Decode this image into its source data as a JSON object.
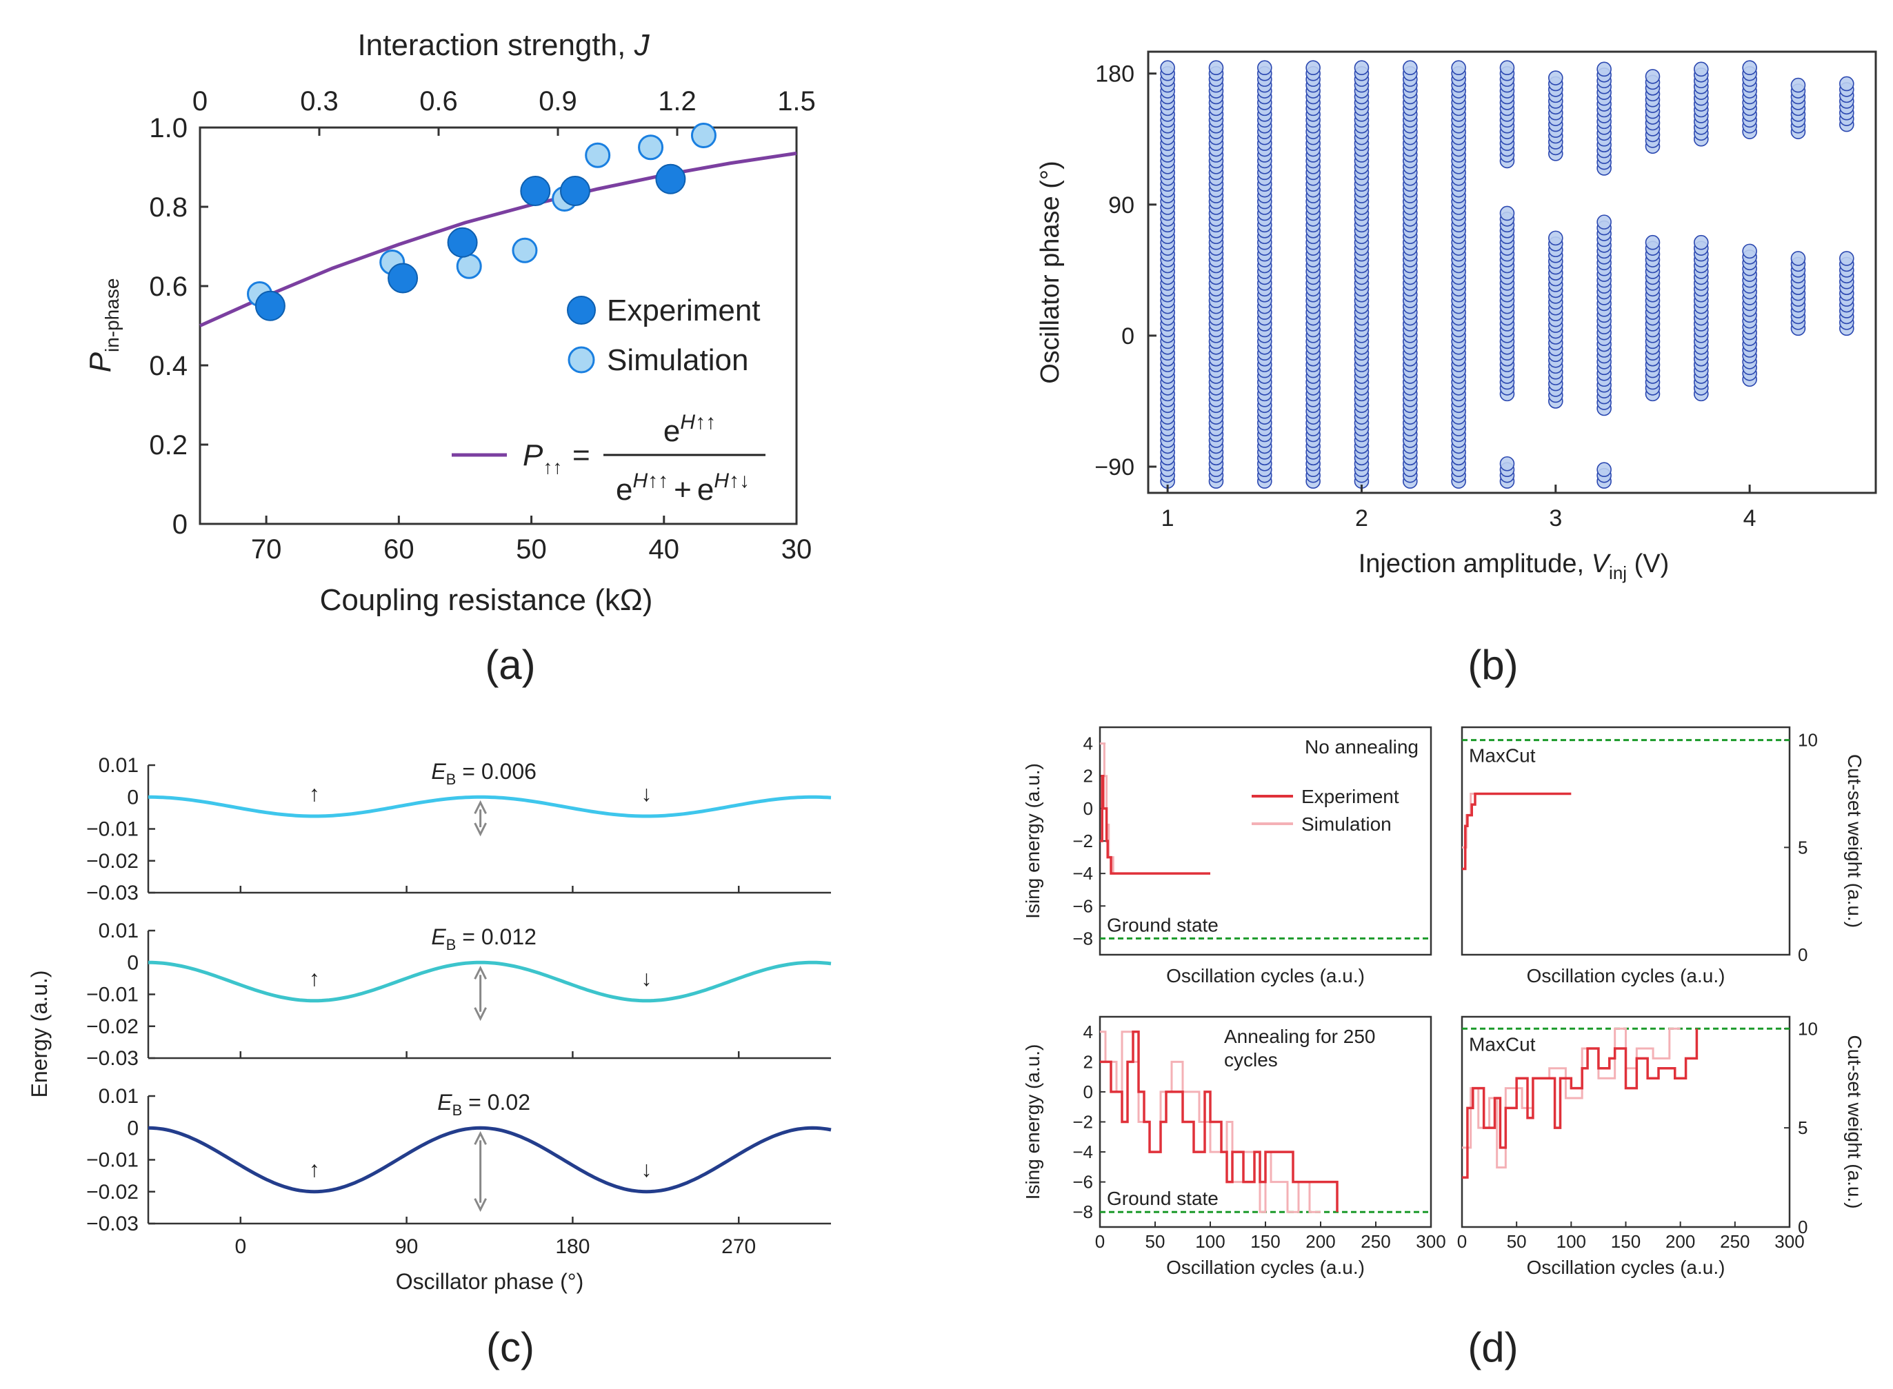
{
  "chart_data": [
    {
      "panel": "(a)",
      "type": "scatter",
      "top_axis_label_text": "Interaction strength, ",
      "top_axis_label_var": "J",
      "top_ticks": [
        "0",
        "0.3",
        "0.6",
        "0.9",
        "1.2",
        "1.5"
      ],
      "xlabel": "Coupling resistance (kΩ)",
      "x_ticks": [
        "70",
        "60",
        "50",
        "40",
        "30"
      ],
      "xlim": [
        75,
        30
      ],
      "ylabel_main": "P",
      "ylabel_sub": "in-phase",
      "y_ticks": [
        "0",
        "0.2",
        "0.4",
        "0.6",
        "0.8",
        "1.0"
      ],
      "ylim": [
        0,
        1.0
      ],
      "series": [
        {
          "name": "Experiment",
          "color": "#1a7fe0",
          "x": [
            69.7,
            59.7,
            55.2,
            49.7,
            46.7,
            39.5
          ],
          "y": [
            0.55,
            0.62,
            0.71,
            0.84,
            0.84,
            0.87
          ]
        },
        {
          "name": "Simulation",
          "color": "#a9d7f4",
          "x": [
            70.5,
            60.5,
            54.7,
            50.5,
            47.5,
            45.0,
            41.0,
            37.0
          ],
          "y": [
            0.58,
            0.66,
            0.65,
            0.69,
            0.82,
            0.93,
            0.95,
            0.98
          ]
        }
      ],
      "fit": {
        "color": "#7b3fa0",
        "x": [
          75,
          70,
          65,
          60,
          55,
          50,
          45,
          40,
          35,
          30
        ],
        "y": [
          0.5,
          0.575,
          0.645,
          0.705,
          0.76,
          0.805,
          0.845,
          0.88,
          0.91,
          0.935
        ]
      },
      "legend": {
        "experiment": "Experiment",
        "simulation": "Simulation"
      },
      "formula": {
        "lhs": "P",
        "lhs_sub": "↑↑",
        "eq": "=",
        "num": "e",
        "num_sup": "H↑↑",
        "den_a": "e",
        "den_a_sup": "H↑↑",
        "den_plus": "+",
        "den_b": "e",
        "den_b_sup": "H↑↓"
      },
      "tag": "(a)"
    },
    {
      "panel": "(b)",
      "type": "scatter",
      "xlabel_text": "Injection amplitude, ",
      "xlabel_var": "V",
      "xlabel_sub": "inj",
      "xlabel_unit": " (V)",
      "ylabel": "Oscillator phase (°)",
      "x_ticks": [
        "1",
        "2",
        "3",
        "4"
      ],
      "xlim": [
        0.9,
        4.65
      ],
      "y_ticks": [
        "−90",
        "0",
        "90",
        "180"
      ],
      "ylim": [
        -108,
        195
      ],
      "marker_color": "#b9cdf0",
      "marker_edge": "#2a47b0",
      "columns": [
        {
          "v": 1.0,
          "ranges": [
            [
              -100,
              185
            ]
          ]
        },
        {
          "v": 1.25,
          "ranges": [
            [
              -100,
              185
            ]
          ]
        },
        {
          "v": 1.5,
          "ranges": [
            [
              -100,
              185
            ]
          ]
        },
        {
          "v": 1.75,
          "ranges": [
            [
              -100,
              185
            ]
          ]
        },
        {
          "v": 2.0,
          "ranges": [
            [
              -100,
              185
            ]
          ]
        },
        {
          "v": 2.25,
          "ranges": [
            [
              -100,
              185
            ]
          ]
        },
        {
          "v": 2.5,
          "ranges": [
            [
              -100,
              185
            ]
          ]
        },
        {
          "v": 2.75,
          "ranges": [
            [
              120,
              185
            ],
            [
              -40,
              85
            ],
            [
              -100,
              -88
            ]
          ]
        },
        {
          "v": 3.0,
          "ranges": [
            [
              125,
              180
            ],
            [
              -45,
              70
            ]
          ]
        },
        {
          "v": 3.25,
          "ranges": [
            [
              115,
              185
            ],
            [
              -50,
              80
            ],
            [
              -100,
              -92
            ]
          ]
        },
        {
          "v": 3.5,
          "ranges": [
            [
              130,
              180
            ],
            [
              -40,
              65
            ]
          ]
        },
        {
          "v": 3.75,
          "ranges": [
            [
              135,
              185
            ],
            [
              -40,
              65
            ]
          ]
        },
        {
          "v": 4.0,
          "ranges": [
            [
              140,
              185
            ],
            [
              -30,
              60
            ]
          ]
        },
        {
          "v": 4.25,
          "ranges": [
            [
              140,
              172
            ],
            [
              5,
              55
            ]
          ]
        },
        {
          "v": 4.5,
          "ranges": [
            [
              145,
              175
            ],
            [
              5,
              55
            ]
          ]
        }
      ],
      "tag": "(b)"
    },
    {
      "panel": "(c)",
      "type": "line",
      "xlabel": "Oscillator phase (°)",
      "ylabel": "Energy (a.u.)",
      "x_ticks": [
        "0",
        "90",
        "180",
        "270"
      ],
      "xlim": [
        -50,
        320
      ],
      "y_ticks": [
        "0.01",
        "0",
        "−0.01",
        "−0.02",
        "−0.03"
      ],
      "ylim": [
        -0.03,
        0.01
      ],
      "series": [
        {
          "name": "E_B = 0.006",
          "label_var": "E",
          "label_sub": "B",
          "label_val": " = 0.006",
          "barrier": 0.006,
          "color": "#3ec6ec"
        },
        {
          "name": "E_B = 0.012",
          "label_var": "E",
          "label_sub": "B",
          "label_val": " = 0.012",
          "barrier": 0.012,
          "color": "#3cc4cc"
        },
        {
          "name": "E_B = 0.02",
          "label_var": "E",
          "label_sub": "B",
          "label_val": " = 0.02",
          "barrier": 0.02,
          "color": "#233d8c"
        }
      ],
      "minima_deg": [
        40,
        220
      ],
      "maximum_deg": 130,
      "spin_up": "↑",
      "spin_down": "↓",
      "tag": "(c)"
    },
    {
      "panel": "(d)",
      "type": "line",
      "xlabel": "Oscillation cycles (a.u.)",
      "x_ticks": [
        "0",
        "50",
        "100",
        "150",
        "200",
        "250",
        "300"
      ],
      "xlim": [
        0,
        300
      ],
      "left_ylabel": "Ising energy (a.u.)",
      "left_ticks": [
        "4",
        "2",
        "0",
        "−2",
        "−4",
        "−6",
        "−8"
      ],
      "left_ylim": [
        -9,
        5
      ],
      "right_ylabel": "Cut-set weight (a.u.)",
      "right_ticks": [
        "10",
        "5",
        "0"
      ],
      "right_ylim": [
        0,
        10.6
      ],
      "ground_state_label": "Ground state",
      "maxcut_label": "MaxCut",
      "no_annealing_label": "No annealing",
      "annealing_label_1": "Annealing for 250",
      "annealing_label_2": "cycles",
      "legend": {
        "experiment": "Experiment",
        "simulation": "Simulation"
      },
      "experiment_color": "#e0313a",
      "simulation_color": "#f4b1b6",
      "ground_line_color": "#1b9a2a",
      "ising_no_annealing": {
        "x": [
          0,
          2,
          3,
          6,
          7,
          10,
          100
        ],
        "y": [
          -2,
          2,
          0,
          -2,
          -3,
          -4,
          -4
        ]
      },
      "ising_no_annealing_sim": {
        "x": [
          0,
          4,
          6,
          8,
          12,
          14
        ],
        "y": [
          4,
          2,
          -1,
          -3,
          -4,
          -4
        ]
      },
      "cut_no_annealing": {
        "x": [
          0,
          3,
          5,
          9,
          12,
          100
        ],
        "y": [
          4,
          6,
          6.5,
          7,
          7.5,
          7.5
        ]
      },
      "cut_no_annealing_sim": {
        "x": [
          0,
          4,
          8,
          12
        ],
        "y": [
          5,
          6.5,
          7.5,
          7.5
        ]
      },
      "ising_annealing": {
        "x": [
          0,
          10,
          20,
          25,
          30,
          35,
          40,
          45,
          55,
          60,
          70,
          75,
          85,
          95,
          100,
          110,
          115,
          120,
          130,
          140,
          145,
          150,
          160,
          175,
          200,
          215
        ],
        "y": [
          2,
          0,
          -2,
          2,
          4,
          0,
          -2,
          -4,
          -2,
          0,
          0,
          -2,
          -4,
          0,
          -2,
          -4,
          -6,
          -4,
          -6,
          -4,
          -6,
          -4,
          -4,
          -6,
          -6,
          -8
        ]
      },
      "ising_annealing_sim": {
        "x": [
          0,
          5,
          15,
          20,
          30,
          35,
          45,
          55,
          65,
          75,
          90,
          100,
          115,
          120,
          130,
          145,
          150,
          155,
          170,
          180,
          190,
          200
        ],
        "y": [
          4,
          2,
          0,
          4,
          2,
          -2,
          -4,
          0,
          2,
          0,
          -2,
          -4,
          -2,
          -6,
          -4,
          -8,
          -4,
          -6,
          -8,
          -6,
          -8,
          -8
        ]
      },
      "cut_annealing": {
        "x": [
          0,
          5,
          10,
          20,
          30,
          35,
          40,
          50,
          60,
          65,
          75,
          85,
          90,
          100,
          110,
          115,
          125,
          135,
          140,
          150,
          160,
          170,
          180,
          195,
          205,
          215
        ],
        "y": [
          2.5,
          6,
          7,
          5,
          6.5,
          4,
          6,
          7.5,
          5.5,
          7.5,
          7.5,
          5,
          7.5,
          7,
          8,
          9,
          8,
          8.5,
          9,
          7,
          8.5,
          7.5,
          8,
          7.5,
          8.5,
          10
        ]
      },
      "cut_annealing_sim": {
        "x": [
          0,
          8,
          15,
          25,
          32,
          40,
          55,
          65,
          80,
          95,
          110,
          125,
          140,
          150,
          160,
          175,
          190,
          200
        ],
        "y": [
          4,
          7,
          5,
          6.5,
          3,
          7,
          6,
          7.5,
          8,
          6.5,
          9,
          7.5,
          10,
          8,
          9,
          8.5,
          10,
          10
        ]
      },
      "tag": "(d)"
    }
  ]
}
